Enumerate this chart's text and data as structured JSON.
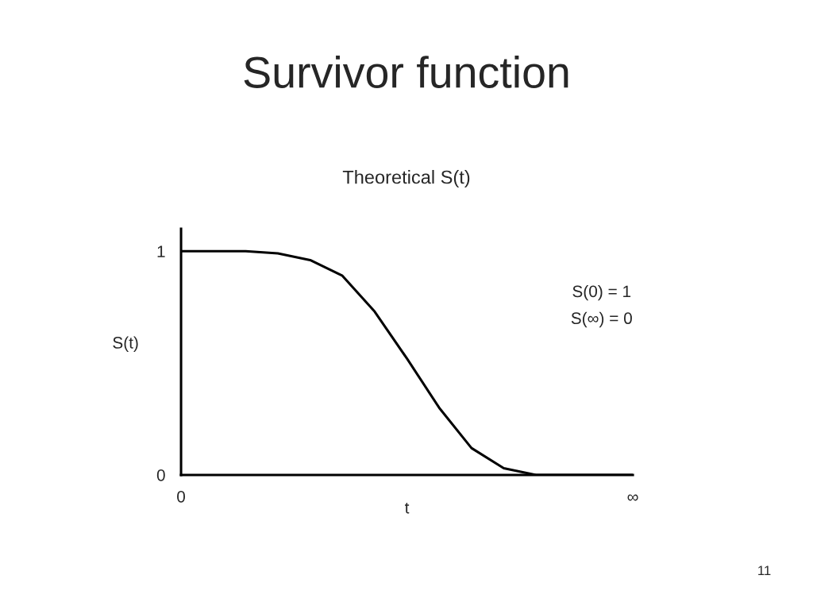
{
  "chart_data": {
    "type": "line",
    "title": "Survivor function",
    "subtitle": "Theoretical S(t)",
    "xlabel": "t",
    "ylabel": "S(t)",
    "categories": [
      "0",
      null,
      null,
      null,
      null,
      null,
      null,
      null,
      null,
      null,
      null,
      null,
      null,
      null,
      "∞"
    ],
    "series": [
      {
        "color": "#000000",
        "values": [
          1.0,
          1.0,
          1.0,
          0.99,
          0.96,
          0.89,
          0.73,
          0.52,
          0.3,
          0.12,
          0.03,
          0.0,
          0.0,
          0.0,
          0.0
        ]
      }
    ],
    "ylim": [
      0,
      1.1
    ],
    "yticks": [
      0,
      1
    ],
    "annotations": [
      "S(0) = 1",
      "S(∞) = 0",
      "11"
    ],
    "grid": false,
    "legend": false,
    "marker": "none",
    "line_style": "solid"
  }
}
